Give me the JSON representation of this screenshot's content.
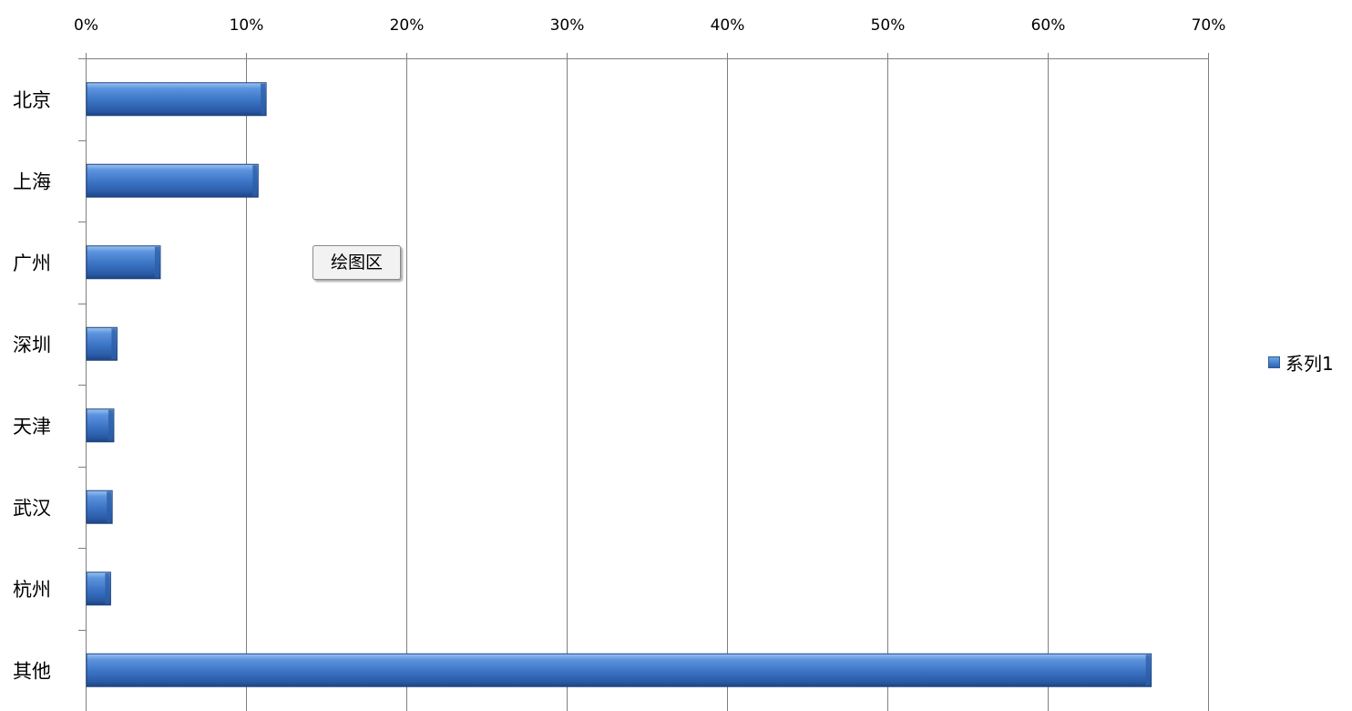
{
  "chart_data": {
    "type": "bar",
    "orientation": "horizontal",
    "categories": [
      "北京",
      "上海",
      "广州",
      "深圳",
      "天津",
      "武汉",
      "杭州",
      "其他"
    ],
    "series": [
      {
        "name": "系列1",
        "values": [
          11.2,
          10.7,
          4.6,
          1.9,
          1.7,
          1.6,
          1.5,
          66.4
        ]
      }
    ],
    "xlim": [
      0,
      70
    ],
    "x_ticks": [
      "0%",
      "10%",
      "20%",
      "30%",
      "40%",
      "50%",
      "60%",
      "70%"
    ],
    "x_axis_position": "top",
    "grid": true,
    "legend_position": "right",
    "series_color": "#3b73c4"
  },
  "tooltip": {
    "label": "绘图区"
  }
}
